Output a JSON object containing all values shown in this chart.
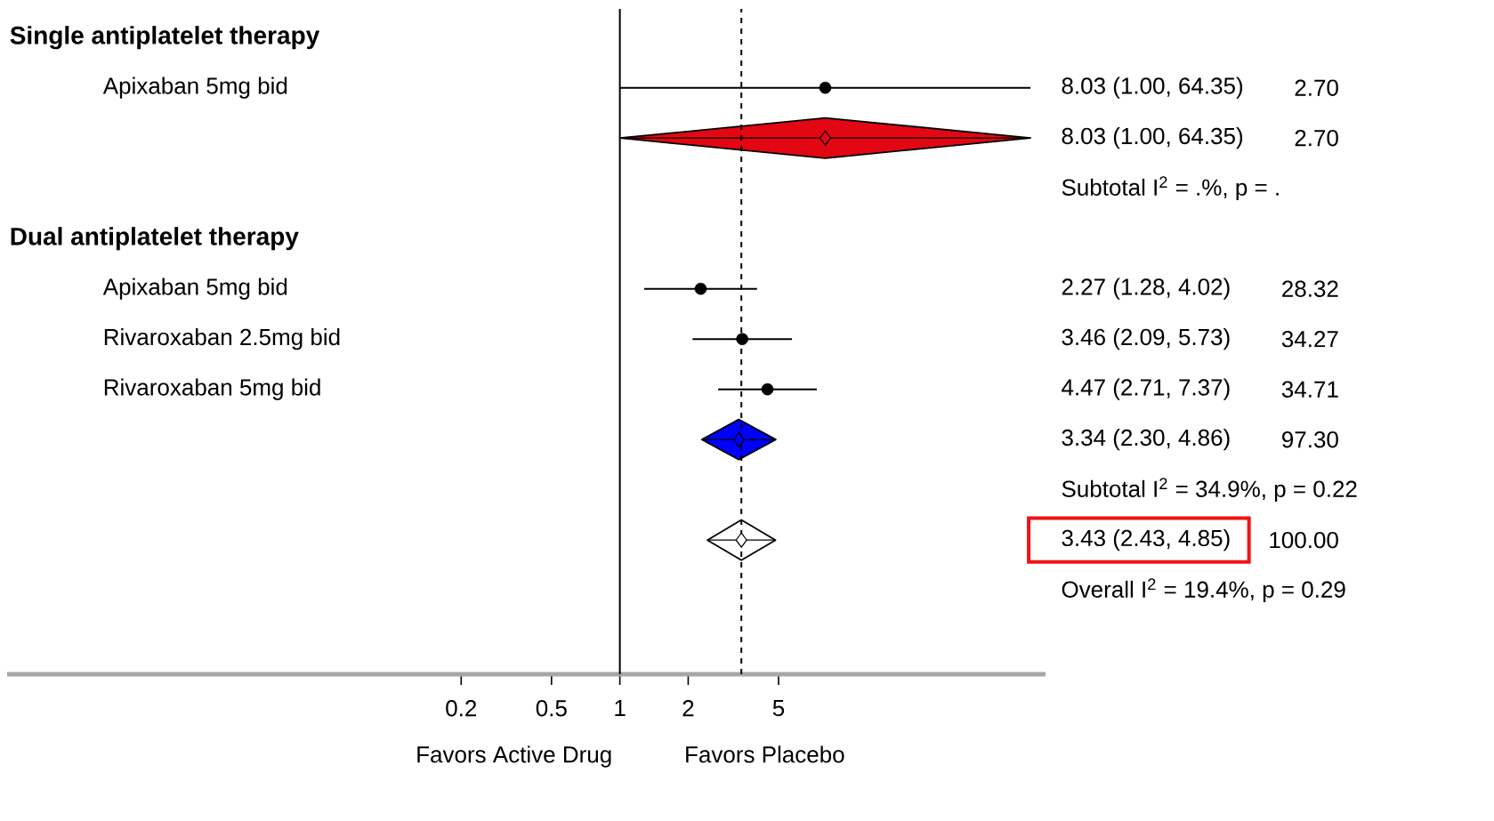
{
  "chart_data": {
    "type": "scatter",
    "orientation": "horizontal",
    "log": "x",
    "categories": [
      "Single antiplatelet therapy",
      "Apixaban 5mg bid",
      null,
      null,
      "Dual antiplatelet therapy",
      "Apixaban 5mg bid",
      "Rivaroxaban 2.5mg bid",
      "Rivaroxaban 5mg bid",
      null,
      null,
      null,
      null
    ],
    "y2_categories": [
      null,
      "8.03 (1.00, 64.35)",
      "8.03 (1.00, 64.35)",
      "Subtotal I$^{2}$ = .%, p = .",
      null,
      "2.27 (1.28, 4.02)",
      "3.46 (2.09, 5.73)",
      "4.47 (2.71, 7.37)",
      "3.34 (2.30, 4.86)",
      "Subtotal I$^{2}$ = 34.9%, p = 0.22",
      "3.43 (2.43, 4.85)",
      "Overall I$^{2}$ = 19.4%, p = 0.29"
    ],
    "series": [
      {
        "marker": "circle",
        "color": "#000000",
        "values": [
          null,
          8.03,
          null,
          null,
          null,
          2.27,
          3.46,
          4.47,
          null,
          null,
          null,
          null
        ],
        "errors": [
          null,
          [
            1.0,
            64.35
          ],
          null,
          null,
          null,
          [
            1.28,
            4.02
          ],
          [
            2.09,
            5.73
          ],
          [
            2.71,
            7.37
          ],
          null,
          null,
          null,
          null
        ]
      },
      {
        "marker": "diamond",
        "colors": [
          null,
          null,
          "#e30613",
          null,
          null,
          null,
          null,
          null,
          "#0000ff",
          null,
          "#ffffff",
          null
        ],
        "values": [
          null,
          null,
          8.03,
          null,
          null,
          null,
          null,
          null,
          3.34,
          null,
          3.43,
          null
        ],
        "errors": [
          null,
          null,
          [
            1.0,
            64.35
          ],
          null,
          null,
          null,
          null,
          null,
          [
            2.3,
            4.86
          ],
          null,
          [
            2.43,
            4.85
          ],
          null
        ]
      }
    ],
    "xlim": [
      0.002,
      75
    ],
    "xticks": [
      0.2,
      0.5,
      1,
      2,
      5
    ],
    "ref_lines": [
      {
        "axis": "x",
        "value": 1,
        "line_style": "solid"
      },
      {
        "axis": "x",
        "value": 3.43,
        "line_style": "dashed"
      }
    ],
    "annotations": [
      "2.70",
      "2.70",
      "28.32",
      "34.27",
      "34.71",
      "97.30",
      "100.00",
      "Favors Active Drug",
      "Favors Placebo"
    ],
    "grid": false
  }
}
